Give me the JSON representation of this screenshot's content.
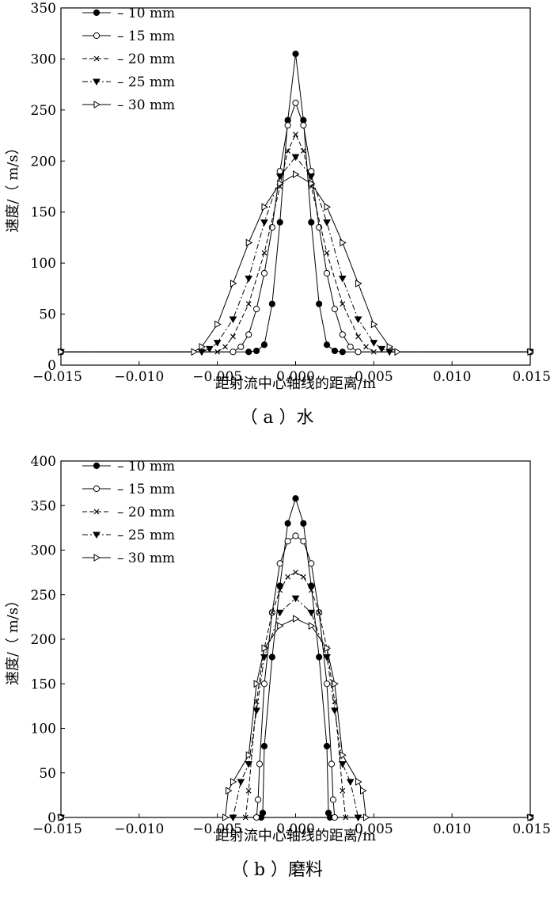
{
  "chart_data": [
    {
      "type": "line",
      "panel_caption": "（ a ）水",
      "xlabel": "距射流中心轴线的距离/m",
      "ylabel": "速度/（ m/s）",
      "xlim": [
        -0.015,
        0.015
      ],
      "ylim": [
        0,
        350
      ],
      "xticks": [
        -0.015,
        -0.01,
        -0.005,
        0.0,
        0.005,
        0.01,
        0.015
      ],
      "xtick_labels": [
        "−0.015",
        "−0.010",
        "−0.005",
        "0.000",
        "0.005",
        "0.010",
        "0.015"
      ],
      "yticks": [
        0,
        50,
        100,
        150,
        200,
        250,
        300,
        350
      ],
      "ytick_labels": [
        "0",
        "50",
        "100",
        "150",
        "200",
        "250",
        "300",
        "350"
      ],
      "legend_position": "top-left",
      "series": [
        {
          "name": "– 10 mm",
          "marker": "filled-circle",
          "dash": "solid",
          "x": [
            -0.015,
            -0.003,
            -0.0025,
            -0.002,
            -0.0015,
            -0.001,
            -0.0005,
            0.0,
            0.0005,
            0.001,
            0.0015,
            0.002,
            0.0025,
            0.003,
            0.015
          ],
          "y": [
            13,
            13,
            14,
            20,
            60,
            140,
            240,
            305,
            240,
            140,
            60,
            20,
            14,
            13,
            13
          ]
        },
        {
          "name": "– 15 mm",
          "marker": "open-circle",
          "dash": "solid",
          "x": [
            -0.015,
            -0.004,
            -0.0035,
            -0.003,
            -0.0025,
            -0.002,
            -0.0015,
            -0.001,
            -0.0005,
            0.0,
            0.0005,
            0.001,
            0.0015,
            0.002,
            0.0025,
            0.003,
            0.0035,
            0.004,
            0.015
          ],
          "y": [
            13,
            13,
            18,
            30,
            55,
            90,
            135,
            190,
            235,
            257,
            235,
            190,
            135,
            90,
            55,
            30,
            18,
            13,
            13
          ]
        },
        {
          "name": "– 20 mm",
          "marker": "x",
          "dash": "dashed",
          "x": [
            -0.015,
            -0.005,
            -0.0045,
            -0.004,
            -0.003,
            -0.002,
            -0.001,
            -0.0005,
            0.0,
            0.0005,
            0.001,
            0.002,
            0.003,
            0.004,
            0.0045,
            0.005,
            0.015
          ],
          "y": [
            13,
            13,
            18,
            28,
            60,
            110,
            175,
            210,
            226,
            210,
            175,
            110,
            60,
            28,
            18,
            13,
            13
          ]
        },
        {
          "name": "– 25 mm",
          "marker": "filled-triangle-down",
          "dash": "dashdot",
          "x": [
            -0.015,
            -0.006,
            -0.0055,
            -0.005,
            -0.004,
            -0.003,
            -0.002,
            -0.001,
            0.0,
            0.001,
            0.002,
            0.003,
            0.004,
            0.005,
            0.0055,
            0.006,
            0.015
          ],
          "y": [
            13,
            13,
            16,
            22,
            45,
            85,
            140,
            185,
            204,
            185,
            140,
            85,
            45,
            22,
            16,
            13,
            13
          ]
        },
        {
          "name": "– 30 mm",
          "marker": "triangle-right",
          "dash": "solid",
          "x": [
            -0.015,
            -0.0065,
            -0.006,
            -0.005,
            -0.004,
            -0.003,
            -0.002,
            -0.001,
            0.0,
            0.001,
            0.002,
            0.003,
            0.004,
            0.005,
            0.006,
            0.0065,
            0.015
          ],
          "y": [
            13,
            13,
            18,
            40,
            80,
            120,
            155,
            178,
            187,
            178,
            155,
            120,
            80,
            40,
            18,
            13,
            13
          ]
        }
      ]
    },
    {
      "type": "line",
      "panel_caption": "（ b ）磨料",
      "xlabel": "距射流中心轴线的距离/m",
      "ylabel": "速度/（ m/s）",
      "xlim": [
        -0.015,
        0.015
      ],
      "ylim": [
        0,
        400
      ],
      "xticks": [
        -0.015,
        -0.01,
        -0.005,
        0.0,
        0.005,
        0.01,
        0.015
      ],
      "xtick_labels": [
        "−0.015",
        "−0.010",
        "−0.005",
        "0.000",
        "0.005",
        "0.010",
        "0.015"
      ],
      "yticks": [
        0,
        50,
        100,
        150,
        200,
        250,
        300,
        350,
        400
      ],
      "ytick_labels": [
        "0",
        "50",
        "100",
        "150",
        "200",
        "250",
        "300",
        "350",
        "400"
      ],
      "legend_position": "top-left",
      "series": [
        {
          "name": "– 10 mm",
          "marker": "filled-circle",
          "dash": "solid",
          "x": [
            -0.015,
            -0.0022,
            -0.0021,
            -0.002,
            -0.0015,
            -0.001,
            -0.0005,
            0.0,
            0.0005,
            0.001,
            0.0015,
            0.002,
            0.0021,
            0.0022,
            0.015
          ],
          "y": [
            0,
            0,
            5,
            80,
            180,
            260,
            330,
            358,
            330,
            260,
            180,
            80,
            5,
            0,
            0
          ]
        },
        {
          "name": "– 15 mm",
          "marker": "open-circle",
          "dash": "solid",
          "x": [
            -0.015,
            -0.0025,
            -0.0024,
            -0.0023,
            -0.002,
            -0.0015,
            -0.001,
            -0.0005,
            0.0,
            0.0005,
            0.001,
            0.0015,
            0.002,
            0.0023,
            0.0024,
            0.0025,
            0.015
          ],
          "y": [
            0,
            0,
            20,
            60,
            150,
            230,
            285,
            310,
            316,
            310,
            285,
            230,
            150,
            60,
            20,
            0,
            0
          ]
        },
        {
          "name": "– 20 mm",
          "marker": "x",
          "dash": "dashed",
          "x": [
            -0.015,
            -0.0032,
            -0.003,
            -0.0025,
            -0.002,
            -0.0015,
            -0.001,
            -0.0005,
            0.0,
            0.0005,
            0.001,
            0.0015,
            0.002,
            0.0025,
            0.003,
            0.0032,
            0.015
          ],
          "y": [
            0,
            0,
            30,
            130,
            190,
            230,
            255,
            270,
            275,
            270,
            255,
            230,
            190,
            130,
            30,
            0,
            0
          ]
        },
        {
          "name": "– 25 mm",
          "marker": "filled-triangle-down",
          "dash": "dashdot",
          "x": [
            -0.015,
            -0.004,
            -0.0035,
            -0.003,
            -0.0025,
            -0.002,
            -0.001,
            0.0,
            0.001,
            0.002,
            0.0025,
            0.003,
            0.0035,
            0.004,
            0.015
          ],
          "y": [
            0,
            0,
            40,
            60,
            120,
            180,
            230,
            246,
            230,
            180,
            120,
            60,
            40,
            0,
            0
          ]
        },
        {
          "name": "– 30 mm",
          "marker": "triangle-right",
          "dash": "solid",
          "x": [
            -0.015,
            -0.0045,
            -0.0043,
            -0.004,
            -0.003,
            -0.0025,
            -0.002,
            -0.001,
            0.0,
            0.001,
            0.002,
            0.0025,
            0.003,
            0.004,
            0.0043,
            0.0045,
            0.015
          ],
          "y": [
            0,
            0,
            30,
            40,
            70,
            150,
            190,
            215,
            223,
            215,
            190,
            150,
            70,
            40,
            30,
            0,
            0
          ]
        }
      ]
    }
  ]
}
